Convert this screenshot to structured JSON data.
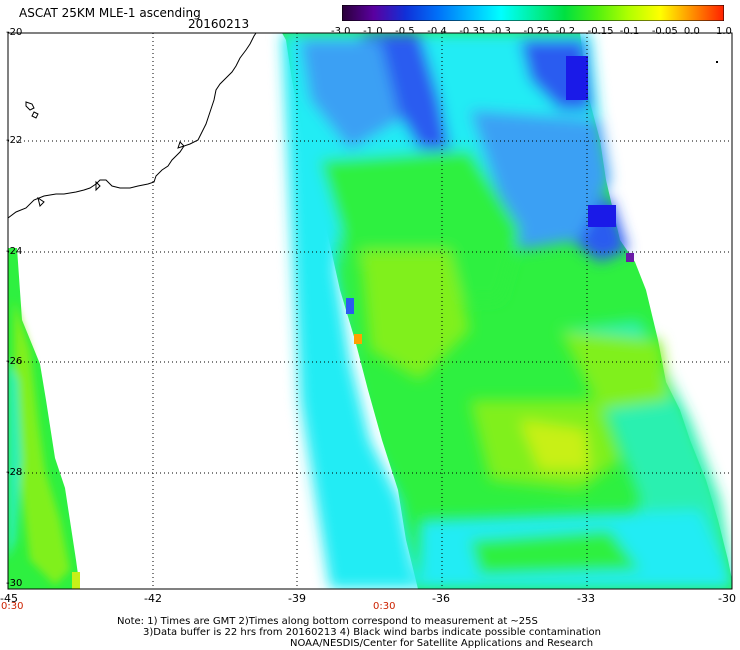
{
  "header": {
    "title": "ASCAT 25KM MLE-1 ascending",
    "date": "20160213"
  },
  "colorbar": {
    "labels": [
      "-3.0",
      "-1.0",
      "-0.5",
      "-0.4",
      "-0.35",
      "-0.3",
      "-0.25",
      "-0.2",
      "-0.15",
      "-0.1",
      "-0.05",
      "0.0",
      "1.0"
    ],
    "colors": [
      "#2a0038",
      "#5a00a0",
      "#1030d8",
      "#0070f8",
      "#00b8ff",
      "#00ffff",
      "#00f0a0",
      "#00e040",
      "#50f010",
      "#b0ff00",
      "#ffff00",
      "#ff9000",
      "#ff2000"
    ]
  },
  "map": {
    "lat_labels": [
      "-20",
      "-22",
      "-24",
      "-26",
      "-28",
      "-30"
    ],
    "lon_labels": [
      "-45",
      "-42",
      "-39",
      "-36",
      "-33",
      "-30"
    ],
    "time_labels": [
      "0:30",
      "0:30"
    ],
    "palette": {
      "blue_dark": "#1a1ae8",
      "blue": "#2a5cf0",
      "blue_light": "#3aa0f4",
      "cyan": "#22ecf4",
      "aqua": "#2af0b0",
      "green": "#2ef040",
      "lime": "#80f01c",
      "yellow_green": "#c8f018",
      "orange": "#ffa000",
      "purple": "#6a1aa8"
    }
  },
  "notes": {
    "line1": "Note: 1) Times are GMT 2)Times along bottom correspond to measurement at ~25S",
    "line2": "3)Data buffer is 22 hrs from 20160213 4) Black wind barbs indicate possible contamination",
    "line3": "NOAA/NESDIS/Center for Satellite Applications and Research"
  }
}
